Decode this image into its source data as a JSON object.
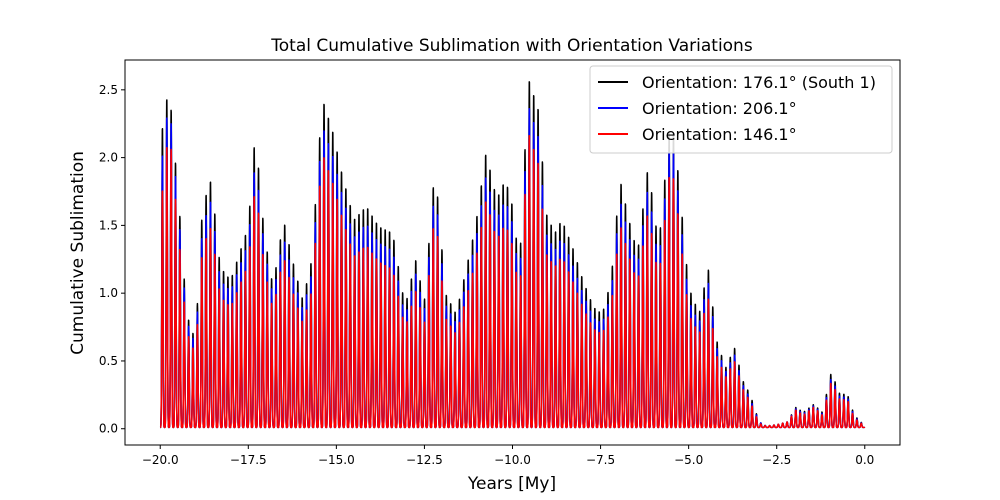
{
  "chart_data": {
    "type": "line",
    "title": "Total Cumulative Sublimation with Orientation Variations",
    "xlabel": "Years [My]",
    "ylabel": "Cumulative Sublimation",
    "xlim": [
      -21.0,
      1.0
    ],
    "ylim": [
      -0.12,
      2.72
    ],
    "grid": false,
    "legend_placement": "top-right",
    "x_ticks": [
      {
        "value": -20.0,
        "label": "−20.0"
      },
      {
        "value": -17.5,
        "label": "−17.5"
      },
      {
        "value": -15.0,
        "label": "−15.0"
      },
      {
        "value": -12.5,
        "label": "−12.5"
      },
      {
        "value": -10.0,
        "label": "−10.0"
      },
      {
        "value": -7.5,
        "label": "−7.5"
      },
      {
        "value": -5.0,
        "label": "−5.0"
      },
      {
        "value": -2.5,
        "label": "−2.5"
      },
      {
        "value": 0.0,
        "label": "0.0"
      }
    ],
    "y_ticks": [
      {
        "value": 0.0,
        "label": "0.0"
      },
      {
        "value": 0.5,
        "label": "0.5"
      },
      {
        "value": 1.0,
        "label": "1.0"
      },
      {
        "value": 1.5,
        "label": "1.5"
      },
      {
        "value": 2.0,
        "label": "2.0"
      },
      {
        "value": 2.5,
        "label": "2.5"
      }
    ],
    "oscillation_period": 0.124,
    "trough_value": 0.01,
    "envelope_x": [
      -20.0,
      -19.75,
      -19.45,
      -19.25,
      -19.0,
      -18.8,
      -18.55,
      -18.3,
      -18.0,
      -17.5,
      -17.3,
      -17.05,
      -16.8,
      -16.5,
      -16.2,
      -15.95,
      -15.7,
      -15.4,
      -15.1,
      -14.85,
      -14.5,
      -14.15,
      -13.8,
      -13.4,
      -13.05,
      -12.75,
      -12.5,
      -12.2,
      -11.9,
      -11.6,
      -11.3,
      -11.05,
      -10.75,
      -10.45,
      -10.2,
      -10.0,
      -9.8,
      -9.55,
      -9.25,
      -9.05,
      -8.8,
      -8.6,
      -8.3,
      -8.0,
      -7.7,
      -7.45,
      -7.2,
      -6.95,
      -6.65,
      -6.45,
      -6.15,
      -5.85,
      -5.5,
      -5.3,
      -5.0,
      -4.7,
      -4.45,
      -4.2,
      -3.95,
      -3.7,
      -3.45,
      -3.25,
      -3.0,
      -2.8,
      -2.5,
      -2.2,
      -1.95,
      -1.75,
      -1.45,
      -1.2,
      -0.95,
      -0.7,
      -0.5,
      -0.3,
      0.0
    ],
    "series": [
      {
        "name": "Orientation: 176.1° (South 1)",
        "color": "#000000",
        "peaks": [
          2.12,
          2.55,
          1.6,
          0.85,
          0.65,
          1.65,
          1.85,
          1.2,
          1.1,
          1.5,
          2.2,
          1.45,
          1.05,
          1.55,
          1.2,
          0.95,
          1.25,
          2.45,
          2.2,
          1.9,
          1.55,
          1.65,
          1.5,
          1.45,
          0.9,
          1.25,
          0.95,
          1.95,
          1.0,
          0.85,
          1.2,
          1.5,
          2.05,
          1.7,
          1.85,
          1.65,
          1.2,
          2.6,
          2.35,
          1.6,
          1.45,
          1.55,
          1.35,
          1.1,
          0.9,
          0.85,
          1.1,
          1.85,
          1.5,
          1.3,
          1.95,
          1.35,
          2.35,
          1.9,
          1.05,
          0.85,
          1.2,
          0.65,
          0.45,
          0.6,
          0.35,
          0.25,
          0.05,
          0.02,
          0.03,
          0.05,
          0.16,
          0.12,
          0.18,
          0.12,
          0.42,
          0.25,
          0.26,
          0.1,
          0.02
        ]
      },
      {
        "name": "Orientation: 206.1°",
        "color": "#0000ff",
        "peaks": [
          1.88,
          2.45,
          1.5,
          0.8,
          0.62,
          1.5,
          1.7,
          1.1,
          1.02,
          1.38,
          2.0,
          1.35,
          0.98,
          1.42,
          1.1,
          0.88,
          1.15,
          2.25,
          2.02,
          1.75,
          1.42,
          1.52,
          1.38,
          1.32,
          0.82,
          1.15,
          0.88,
          1.8,
          0.92,
          0.78,
          1.1,
          1.38,
          1.88,
          1.55,
          1.7,
          1.52,
          1.1,
          2.4,
          2.15,
          1.45,
          1.32,
          1.42,
          1.22,
          1.0,
          0.82,
          0.78,
          1.0,
          1.7,
          1.38,
          1.2,
          1.8,
          1.22,
          2.2,
          1.75,
          0.95,
          0.78,
          1.1,
          0.6,
          0.42,
          0.55,
          0.32,
          0.22,
          0.05,
          0.02,
          0.03,
          0.05,
          0.15,
          0.11,
          0.17,
          0.11,
          0.38,
          0.23,
          0.24,
          0.09,
          0.02
        ]
      },
      {
        "name": "Orientation: 146.1°",
        "color": "#ff0000",
        "peaks": [
          1.6,
          2.25,
          1.35,
          0.72,
          0.55,
          1.35,
          1.5,
          0.98,
          0.9,
          1.22,
          1.82,
          1.2,
          0.88,
          1.28,
          0.98,
          0.78,
          1.02,
          2.05,
          1.82,
          1.58,
          1.28,
          1.36,
          1.24,
          1.18,
          0.74,
          1.02,
          0.78,
          1.62,
          0.82,
          0.7,
          0.98,
          1.24,
          1.7,
          1.4,
          1.52,
          1.36,
          0.98,
          2.2,
          1.95,
          1.3,
          1.2,
          1.28,
          1.1,
          0.9,
          0.74,
          0.7,
          0.9,
          1.52,
          1.24,
          1.08,
          1.62,
          1.1,
          2.0,
          1.58,
          0.85,
          0.7,
          0.98,
          0.54,
          0.38,
          0.5,
          0.29,
          0.2,
          0.04,
          0.02,
          0.03,
          0.05,
          0.14,
          0.1,
          0.16,
          0.1,
          0.35,
          0.21,
          0.22,
          0.08,
          0.02
        ]
      }
    ]
  }
}
